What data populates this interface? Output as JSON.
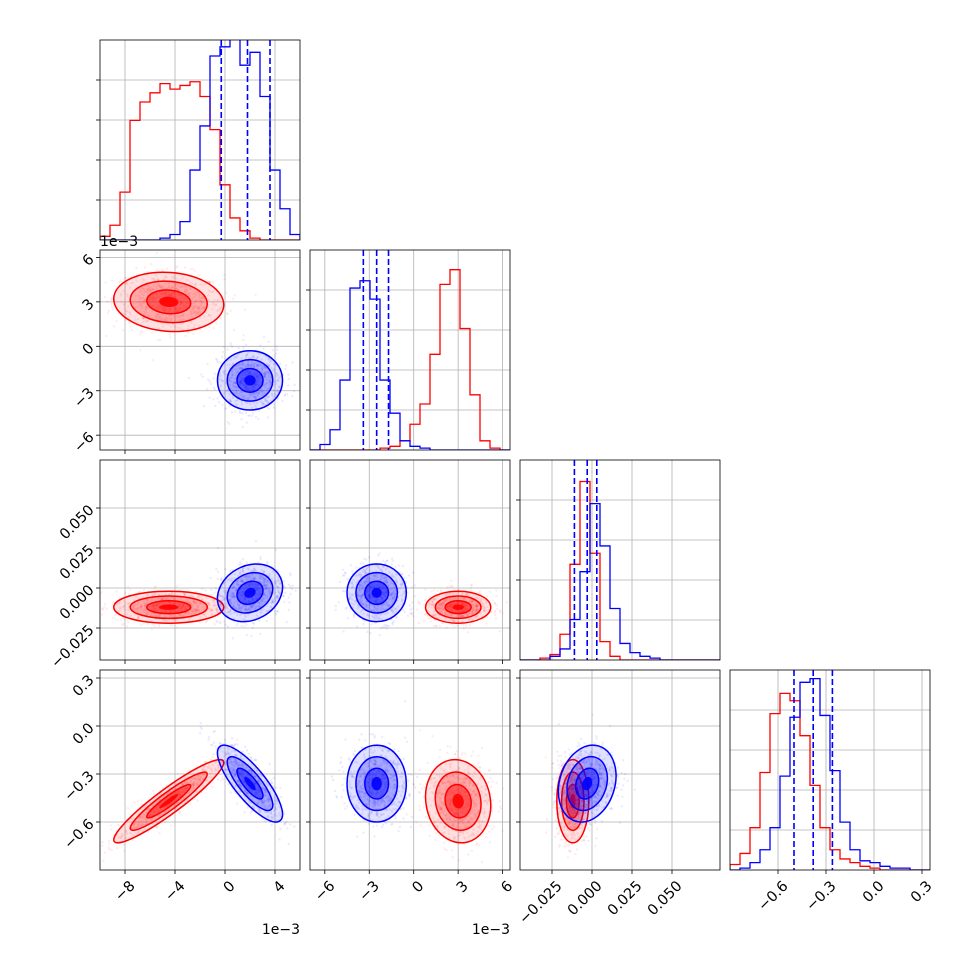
{
  "chart_data": {
    "type": "corner",
    "title": "",
    "series_colors": {
      "red": "#ff0000",
      "blue": "#0000ff"
    },
    "grid": true,
    "dims": [
      {
        "range": [
          -10.0,
          6.0
        ],
        "ticks": [
          -8,
          -4,
          0,
          4
        ],
        "tick_labels": [
          "−8",
          "−4",
          "0",
          "4"
        ],
        "offset_text": "1e−3",
        "ylim_hist": [
          0,
          1
        ]
      },
      {
        "range": [
          -7.0,
          6.5
        ],
        "ticks": [
          -6,
          -3,
          0,
          3,
          6
        ],
        "tick_labels": [
          "−6",
          "−3",
          "0",
          "3",
          "6"
        ],
        "offset_text": "1e−3",
        "ylim_hist": [
          0,
          1
        ]
      },
      {
        "range": [
          -0.045,
          0.08
        ],
        "ticks": [
          -0.025,
          0.0,
          0.025,
          0.05
        ],
        "tick_labels": [
          "−0.025",
          "0.000",
          "0.025",
          "0.050"
        ],
        "offset_text": "",
        "ylim_hist": [
          0,
          1
        ]
      },
      {
        "range": [
          -0.9,
          0.35
        ],
        "ticks": [
          -0.6,
          -0.3,
          0.0,
          0.3
        ],
        "tick_labels": [
          "−0.6",
          "−0.3",
          "0.0",
          "0.3"
        ],
        "offset_text": "",
        "ylim_hist": [
          0,
          1
        ]
      }
    ],
    "histograms": [
      {
        "red": [
          0.02,
          0.08,
          0.26,
          0.65,
          0.75,
          0.8,
          0.85,
          0.82,
          0.84,
          0.86,
          0.78,
          0.6,
          0.3,
          0.12,
          0.05,
          0.01,
          0,
          0,
          0,
          0
        ],
        "blue": [
          0,
          0,
          0,
          0,
          0,
          0,
          0.01,
          0.03,
          0.1,
          0.38,
          0.62,
          1.0,
          1.05,
          1.1,
          0.95,
          1.02,
          0.78,
          0.38,
          0.17,
          0.03
        ],
        "quantiles": [
          -0.3,
          1.8,
          3.6
        ]
      },
      {
        "red": [
          0,
          0,
          0,
          0,
          0,
          0,
          0,
          0.01,
          0.02,
          0.05,
          0.14,
          0.25,
          0.52,
          0.9,
          0.98,
          0.66,
          0.3,
          0.05,
          0.01,
          0
        ],
        "blue": [
          0,
          0.03,
          0.11,
          0.38,
          0.88,
          0.92,
          0.82,
          0.38,
          0.2,
          0.05,
          0.02,
          0.01,
          0,
          0,
          0,
          0,
          0,
          0,
          0,
          0
        ],
        "quantiles": [
          -3.4,
          -2.5,
          -1.7
        ]
      },
      {
        "red": [
          0,
          0,
          0.01,
          0.03,
          0.14,
          0.52,
          0.97,
          0.58,
          0.1,
          0.02,
          0,
          0,
          0,
          0,
          0,
          0,
          0,
          0,
          0,
          0
        ],
        "blue": [
          0,
          0,
          0,
          0.02,
          0.06,
          0.22,
          0.48,
          0.85,
          0.62,
          0.28,
          0.09,
          0.04,
          0.02,
          0.01,
          0,
          0,
          0,
          0,
          0,
          0
        ],
        "quantiles": [
          -0.011,
          -0.003,
          0.003
        ]
      },
      {
        "red": [
          0.03,
          0.09,
          0.23,
          0.53,
          0.85,
          0.96,
          0.92,
          0.73,
          0.46,
          0.23,
          0.11,
          0.06,
          0.04,
          0.02,
          0.01,
          0,
          0,
          0,
          0,
          0
        ],
        "blue": [
          0,
          0.01,
          0.04,
          0.11,
          0.23,
          0.51,
          0.83,
          1.02,
          1.04,
          0.84,
          0.54,
          0.26,
          0.11,
          0.05,
          0.04,
          0.02,
          0.01,
          0.01,
          0,
          0
        ],
        "quantiles": [
          -0.5,
          -0.38,
          -0.26
        ]
      }
    ],
    "pairs": [
      {
        "x_dim": 0,
        "y_dim": 1,
        "red": {
          "mean": [
            -4.5,
            3.0
          ],
          "sd": [
            2.2,
            1.0
          ],
          "rho": -0.1
        },
        "blue": {
          "mean": [
            2.0,
            -2.3
          ],
          "sd": [
            1.3,
            1.0
          ],
          "rho": 0.0
        }
      },
      {
        "x_dim": 0,
        "y_dim": 2,
        "red": {
          "mean": [
            -4.5,
            -0.012
          ],
          "sd": [
            2.2,
            0.005
          ],
          "rho": 0.0
        },
        "blue": {
          "mean": [
            2.0,
            -0.003
          ],
          "sd": [
            1.3,
            0.009
          ],
          "rho": 0.2
        }
      },
      {
        "x_dim": 1,
        "y_dim": 2,
        "red": {
          "mean": [
            3.0,
            -0.012
          ],
          "sd": [
            1.1,
            0.005
          ],
          "rho": 0.0
        },
        "blue": {
          "mean": [
            -2.5,
            -0.003
          ],
          "sd": [
            1.0,
            0.009
          ],
          "rho": 0.0
        }
      },
      {
        "x_dim": 0,
        "y_dim": 3,
        "red": {
          "mean": [
            -4.5,
            -0.47
          ],
          "sd": [
            2.2,
            0.13
          ],
          "rho": 0.93
        },
        "blue": {
          "mean": [
            2.0,
            -0.36
          ],
          "sd": [
            1.3,
            0.12
          ],
          "rho": -0.8
        }
      },
      {
        "x_dim": 1,
        "y_dim": 3,
        "red": {
          "mean": [
            3.0,
            -0.47
          ],
          "sd": [
            1.1,
            0.13
          ],
          "rho": -0.1
        },
        "blue": {
          "mean": [
            -2.5,
            -0.36
          ],
          "sd": [
            1.0,
            0.12
          ],
          "rho": 0.0
        }
      },
      {
        "x_dim": 2,
        "y_dim": 3,
        "red": {
          "mean": [
            -0.012,
            -0.47
          ],
          "sd": [
            0.005,
            0.13
          ],
          "rho": 0.0
        },
        "blue": {
          "mean": [
            -0.003,
            -0.36
          ],
          "sd": [
            0.009,
            0.12
          ],
          "rho": 0.2
        }
      }
    ]
  }
}
